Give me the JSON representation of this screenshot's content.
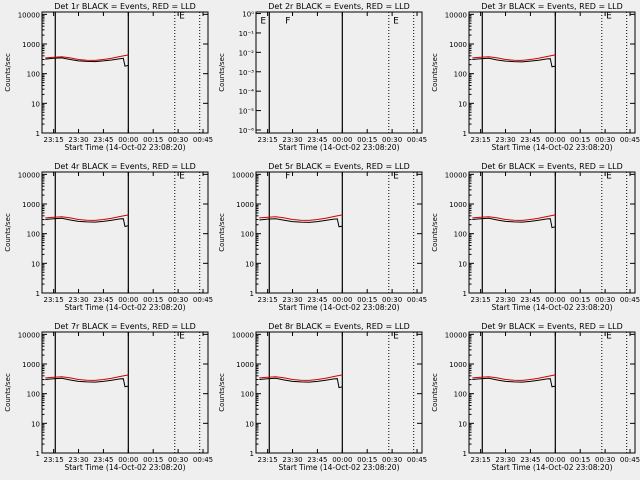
{
  "colors": {
    "background": "#efefef",
    "events": "#000000",
    "lld": "#d40000",
    "axes": "#000000"
  },
  "x_tick_labels": [
    "23:15",
    "23:30",
    "23:45",
    "00:00",
    "00:15",
    "00:30",
    "00:45"
  ],
  "y_tick_labels_standard": [
    "1",
    "10",
    "100",
    "1000",
    "10000"
  ],
  "y_tick_labels_det2": [
    "10⁰",
    "10⁻¹",
    "10⁻²",
    "10⁻³",
    "10⁻⁴",
    "10⁻⁵",
    "10⁻⁶"
  ],
  "y_axis_label": "Counts/sec",
  "x_axis_label": "Start Time (14-Oct-02 23:08:20)",
  "chart_data": [
    {
      "type": "line",
      "title": "Det 1r BLACK = Events, RED = LLD",
      "xlabel": "Start Time (14-Oct-02 23:08:20)",
      "ylabel": "Counts/sec",
      "yscale": "log",
      "ylim": [
        1,
        12000
      ],
      "x_ticks": [
        "23:15",
        "23:30",
        "23:45",
        "00:00",
        "00:15",
        "00:30",
        "00:45"
      ],
      "series": [
        {
          "color": "#000000",
          "x": [
            "23:10",
            "23:15",
            "23:20",
            "23:25",
            "23:30",
            "23:35",
            "23:40",
            "23:45",
            "23:50",
            "23:55",
            "23:57",
            "23:58",
            "00:00"
          ],
          "y": [
            310,
            330,
            340,
            300,
            270,
            260,
            255,
            270,
            290,
            320,
            330,
            180,
            190
          ]
        },
        {
          "color": "#d40000",
          "x": [
            "23:10",
            "23:15",
            "23:20",
            "23:25",
            "23:30",
            "23:35",
            "23:40",
            "23:45",
            "23:50",
            "23:55",
            "00:00"
          ],
          "y": [
            340,
            360,
            370,
            340,
            300,
            285,
            280,
            300,
            330,
            380,
            430
          ]
        }
      ],
      "markers": [
        {
          "text": "E",
          "x": "00:30",
          "y": 10000
        }
      ]
    },
    {
      "type": "line",
      "title": "Det 2r BLACK = Events, RED = LLD",
      "xlabel": "Start Time (14-Oct-02 23:08:20)",
      "ylabel": "Counts/sec",
      "yscale": "log",
      "ylim": [
        7e-07,
        1.2
      ],
      "y_ticks": [
        "10⁰",
        "10⁻¹",
        "10⁻²",
        "10⁻³",
        "10⁻⁴",
        "10⁻⁵",
        "10⁻⁶"
      ],
      "x_ticks": [
        "23:15",
        "23:30",
        "23:45",
        "00:00",
        "00:15",
        "00:30",
        "00:45"
      ],
      "series": [],
      "markers": [
        {
          "text": "E",
          "x": "23:10",
          "y": 0.5
        },
        {
          "text": "F",
          "x": "23:25",
          "y": 0.5
        },
        {
          "text": "E",
          "x": "00:30",
          "y": 0.5
        }
      ]
    },
    {
      "type": "line",
      "title": "Det 3r BLACK = Events, RED = LLD",
      "xlabel": "Start Time (14-Oct-02 23:08:20)",
      "ylabel": "Counts/sec",
      "yscale": "log",
      "ylim": [
        1,
        12000
      ],
      "x_ticks": [
        "23:15",
        "23:30",
        "23:45",
        "00:00",
        "00:15",
        "00:30",
        "00:45"
      ],
      "series": [
        {
          "color": "#000000",
          "x": [
            "23:10",
            "23:15",
            "23:20",
            "23:25",
            "23:30",
            "23:35",
            "23:40",
            "23:45",
            "23:50",
            "23:55",
            "23:57",
            "23:58",
            "00:00"
          ],
          "y": [
            300,
            320,
            330,
            290,
            265,
            255,
            250,
            265,
            285,
            315,
            320,
            170,
            180
          ]
        },
        {
          "color": "#d40000",
          "x": [
            "23:10",
            "23:15",
            "23:20",
            "23:25",
            "23:30",
            "23:35",
            "23:40",
            "23:45",
            "23:50",
            "23:55",
            "00:00"
          ],
          "y": [
            340,
            360,
            370,
            340,
            300,
            285,
            280,
            300,
            330,
            380,
            430
          ]
        }
      ],
      "markers": [
        {
          "text": "E",
          "x": "00:30",
          "y": 10000
        }
      ]
    },
    {
      "type": "line",
      "title": "Det 4r BLACK = Events, RED = LLD",
      "xlabel": "Start Time (14-Oct-02 23:08:20)",
      "ylabel": "Counts/sec",
      "yscale": "log",
      "ylim": [
        1,
        12000
      ],
      "x_ticks": [
        "23:15",
        "23:30",
        "23:45",
        "00:00",
        "00:15",
        "00:30",
        "00:45"
      ],
      "series": [
        {
          "color": "#000000",
          "x": [
            "23:10",
            "23:15",
            "23:20",
            "23:25",
            "23:30",
            "23:35",
            "23:40",
            "23:45",
            "23:50",
            "23:55",
            "23:57",
            "23:58",
            "00:00"
          ],
          "y": [
            300,
            320,
            330,
            290,
            260,
            250,
            245,
            260,
            285,
            315,
            320,
            175,
            185
          ]
        },
        {
          "color": "#d40000",
          "x": [
            "23:10",
            "23:15",
            "23:20",
            "23:25",
            "23:30",
            "23:35",
            "23:40",
            "23:45",
            "23:50",
            "23:55",
            "00:00"
          ],
          "y": [
            340,
            360,
            370,
            340,
            300,
            285,
            280,
            300,
            330,
            380,
            430
          ]
        }
      ],
      "markers": [
        {
          "text": "E",
          "x": "00:30",
          "y": 10000
        }
      ]
    },
    {
      "type": "line",
      "title": "Det 5r BLACK = Events, RED = LLD",
      "xlabel": "Start Time (14-Oct-02 23:08:20)",
      "ylabel": "Counts/sec",
      "yscale": "log",
      "ylim": [
        1,
        12000
      ],
      "x_ticks": [
        "23:15",
        "23:30",
        "23:45",
        "00:00",
        "00:15",
        "00:30",
        "00:45"
      ],
      "series": [
        {
          "color": "#000000",
          "x": [
            "23:10",
            "23:15",
            "23:20",
            "23:25",
            "23:30",
            "23:35",
            "23:40",
            "23:45",
            "23:50",
            "23:55",
            "23:57",
            "23:58",
            "00:00"
          ],
          "y": [
            290,
            310,
            320,
            285,
            255,
            245,
            240,
            255,
            280,
            310,
            315,
            170,
            180
          ]
        },
        {
          "color": "#d40000",
          "x": [
            "23:10",
            "23:15",
            "23:20",
            "23:25",
            "23:30",
            "23:35",
            "23:40",
            "23:45",
            "23:50",
            "23:55",
            "00:00"
          ],
          "y": [
            340,
            360,
            370,
            340,
            300,
            285,
            280,
            300,
            330,
            380,
            430
          ]
        }
      ],
      "markers": [
        {
          "text": "F",
          "x": "23:25",
          "y": 10000
        },
        {
          "text": "E",
          "x": "00:30",
          "y": 10000
        }
      ]
    },
    {
      "type": "line",
      "title": "Det 6r BLACK = Events, RED = LLD",
      "xlabel": "Start Time (14-Oct-02 23:08:20)",
      "ylabel": "Counts/sec",
      "yscale": "log",
      "ylim": [
        1,
        12000
      ],
      "x_ticks": [
        "23:15",
        "23:30",
        "23:45",
        "00:00",
        "00:15",
        "00:30",
        "00:45"
      ],
      "series": [
        {
          "color": "#000000",
          "x": [
            "23:10",
            "23:15",
            "23:20",
            "23:25",
            "23:30",
            "23:35",
            "23:40",
            "23:45",
            "23:50",
            "23:55",
            "23:57",
            "23:58",
            "00:00"
          ],
          "y": [
            300,
            320,
            330,
            290,
            260,
            250,
            245,
            260,
            285,
            315,
            320,
            160,
            170
          ]
        },
        {
          "color": "#d40000",
          "x": [
            "23:10",
            "23:15",
            "23:20",
            "23:25",
            "23:30",
            "23:35",
            "23:40",
            "23:45",
            "23:50",
            "23:55",
            "00:00"
          ],
          "y": [
            340,
            360,
            370,
            340,
            300,
            285,
            280,
            300,
            330,
            380,
            430
          ]
        }
      ],
      "markers": [
        {
          "text": "E",
          "x": "00:30",
          "y": 10000
        }
      ]
    },
    {
      "type": "line",
      "title": "Det 7r BLACK = Events, RED = LLD",
      "xlabel": "Start Time (14-Oct-02 23:08:20)",
      "ylabel": "Counts/sec",
      "yscale": "log",
      "ylim": [
        1,
        12000
      ],
      "x_ticks": [
        "23:15",
        "23:30",
        "23:45",
        "00:00",
        "00:15",
        "00:30",
        "00:45"
      ],
      "series": [
        {
          "color": "#000000",
          "x": [
            "23:10",
            "23:15",
            "23:20",
            "23:25",
            "23:30",
            "23:35",
            "23:40",
            "23:45",
            "23:50",
            "23:55",
            "23:57",
            "23:58",
            "00:00"
          ],
          "y": [
            300,
            320,
            330,
            290,
            260,
            250,
            245,
            260,
            285,
            315,
            320,
            170,
            180
          ]
        },
        {
          "color": "#d40000",
          "x": [
            "23:10",
            "23:15",
            "23:20",
            "23:25",
            "23:30",
            "23:35",
            "23:40",
            "23:45",
            "23:50",
            "23:55",
            "00:00"
          ],
          "y": [
            340,
            360,
            370,
            340,
            300,
            285,
            280,
            300,
            330,
            380,
            430
          ]
        }
      ],
      "markers": [
        {
          "text": "E",
          "x": "00:30",
          "y": 10000
        }
      ]
    },
    {
      "type": "line",
      "title": "Det 8r BLACK = Events, RED = LLD",
      "xlabel": "Start Time (14-Oct-02 23:08:20)",
      "ylabel": "Counts/sec",
      "yscale": "log",
      "ylim": [
        1,
        12000
      ],
      "x_ticks": [
        "23:15",
        "23:30",
        "23:45",
        "00:00",
        "00:15",
        "00:30",
        "00:45"
      ],
      "series": [
        {
          "color": "#000000",
          "x": [
            "23:10",
            "23:15",
            "23:20",
            "23:25",
            "23:30",
            "23:35",
            "23:40",
            "23:45",
            "23:50",
            "23:55",
            "23:57",
            "23:58",
            "00:00"
          ],
          "y": [
            300,
            320,
            330,
            290,
            260,
            250,
            245,
            260,
            285,
            315,
            320,
            160,
            170
          ]
        },
        {
          "color": "#d40000",
          "x": [
            "23:10",
            "23:15",
            "23:20",
            "23:25",
            "23:30",
            "23:35",
            "23:40",
            "23:45",
            "23:50",
            "23:55",
            "00:00"
          ],
          "y": [
            340,
            360,
            370,
            340,
            300,
            285,
            280,
            300,
            330,
            380,
            430
          ]
        }
      ],
      "markers": [
        {
          "text": "E",
          "x": "00:30",
          "y": 10000
        }
      ]
    },
    {
      "type": "line",
      "title": "Det 9r BLACK = Events, RED = LLD",
      "xlabel": "Start Time (14-Oct-02 23:08:20)",
      "ylabel": "Counts/sec",
      "yscale": "log",
      "ylim": [
        1,
        12000
      ],
      "x_ticks": [
        "23:15",
        "23:30",
        "23:45",
        "00:00",
        "00:15",
        "00:30",
        "00:45"
      ],
      "series": [
        {
          "color": "#000000",
          "x": [
            "23:10",
            "23:15",
            "23:20",
            "23:25",
            "23:30",
            "23:35",
            "23:40",
            "23:45",
            "23:50",
            "23:55",
            "23:57",
            "23:58",
            "00:00"
          ],
          "y": [
            300,
            320,
            330,
            290,
            260,
            250,
            245,
            260,
            285,
            315,
            320,
            170,
            180
          ]
        },
        {
          "color": "#d40000",
          "x": [
            "23:10",
            "23:15",
            "23:20",
            "23:25",
            "23:30",
            "23:35",
            "23:40",
            "23:45",
            "23:50",
            "23:55",
            "00:00"
          ],
          "y": [
            340,
            360,
            370,
            340,
            300,
            285,
            280,
            300,
            330,
            380,
            430
          ]
        }
      ],
      "markers": [
        {
          "text": "E",
          "x": "00:30",
          "y": 10000
        }
      ]
    }
  ]
}
